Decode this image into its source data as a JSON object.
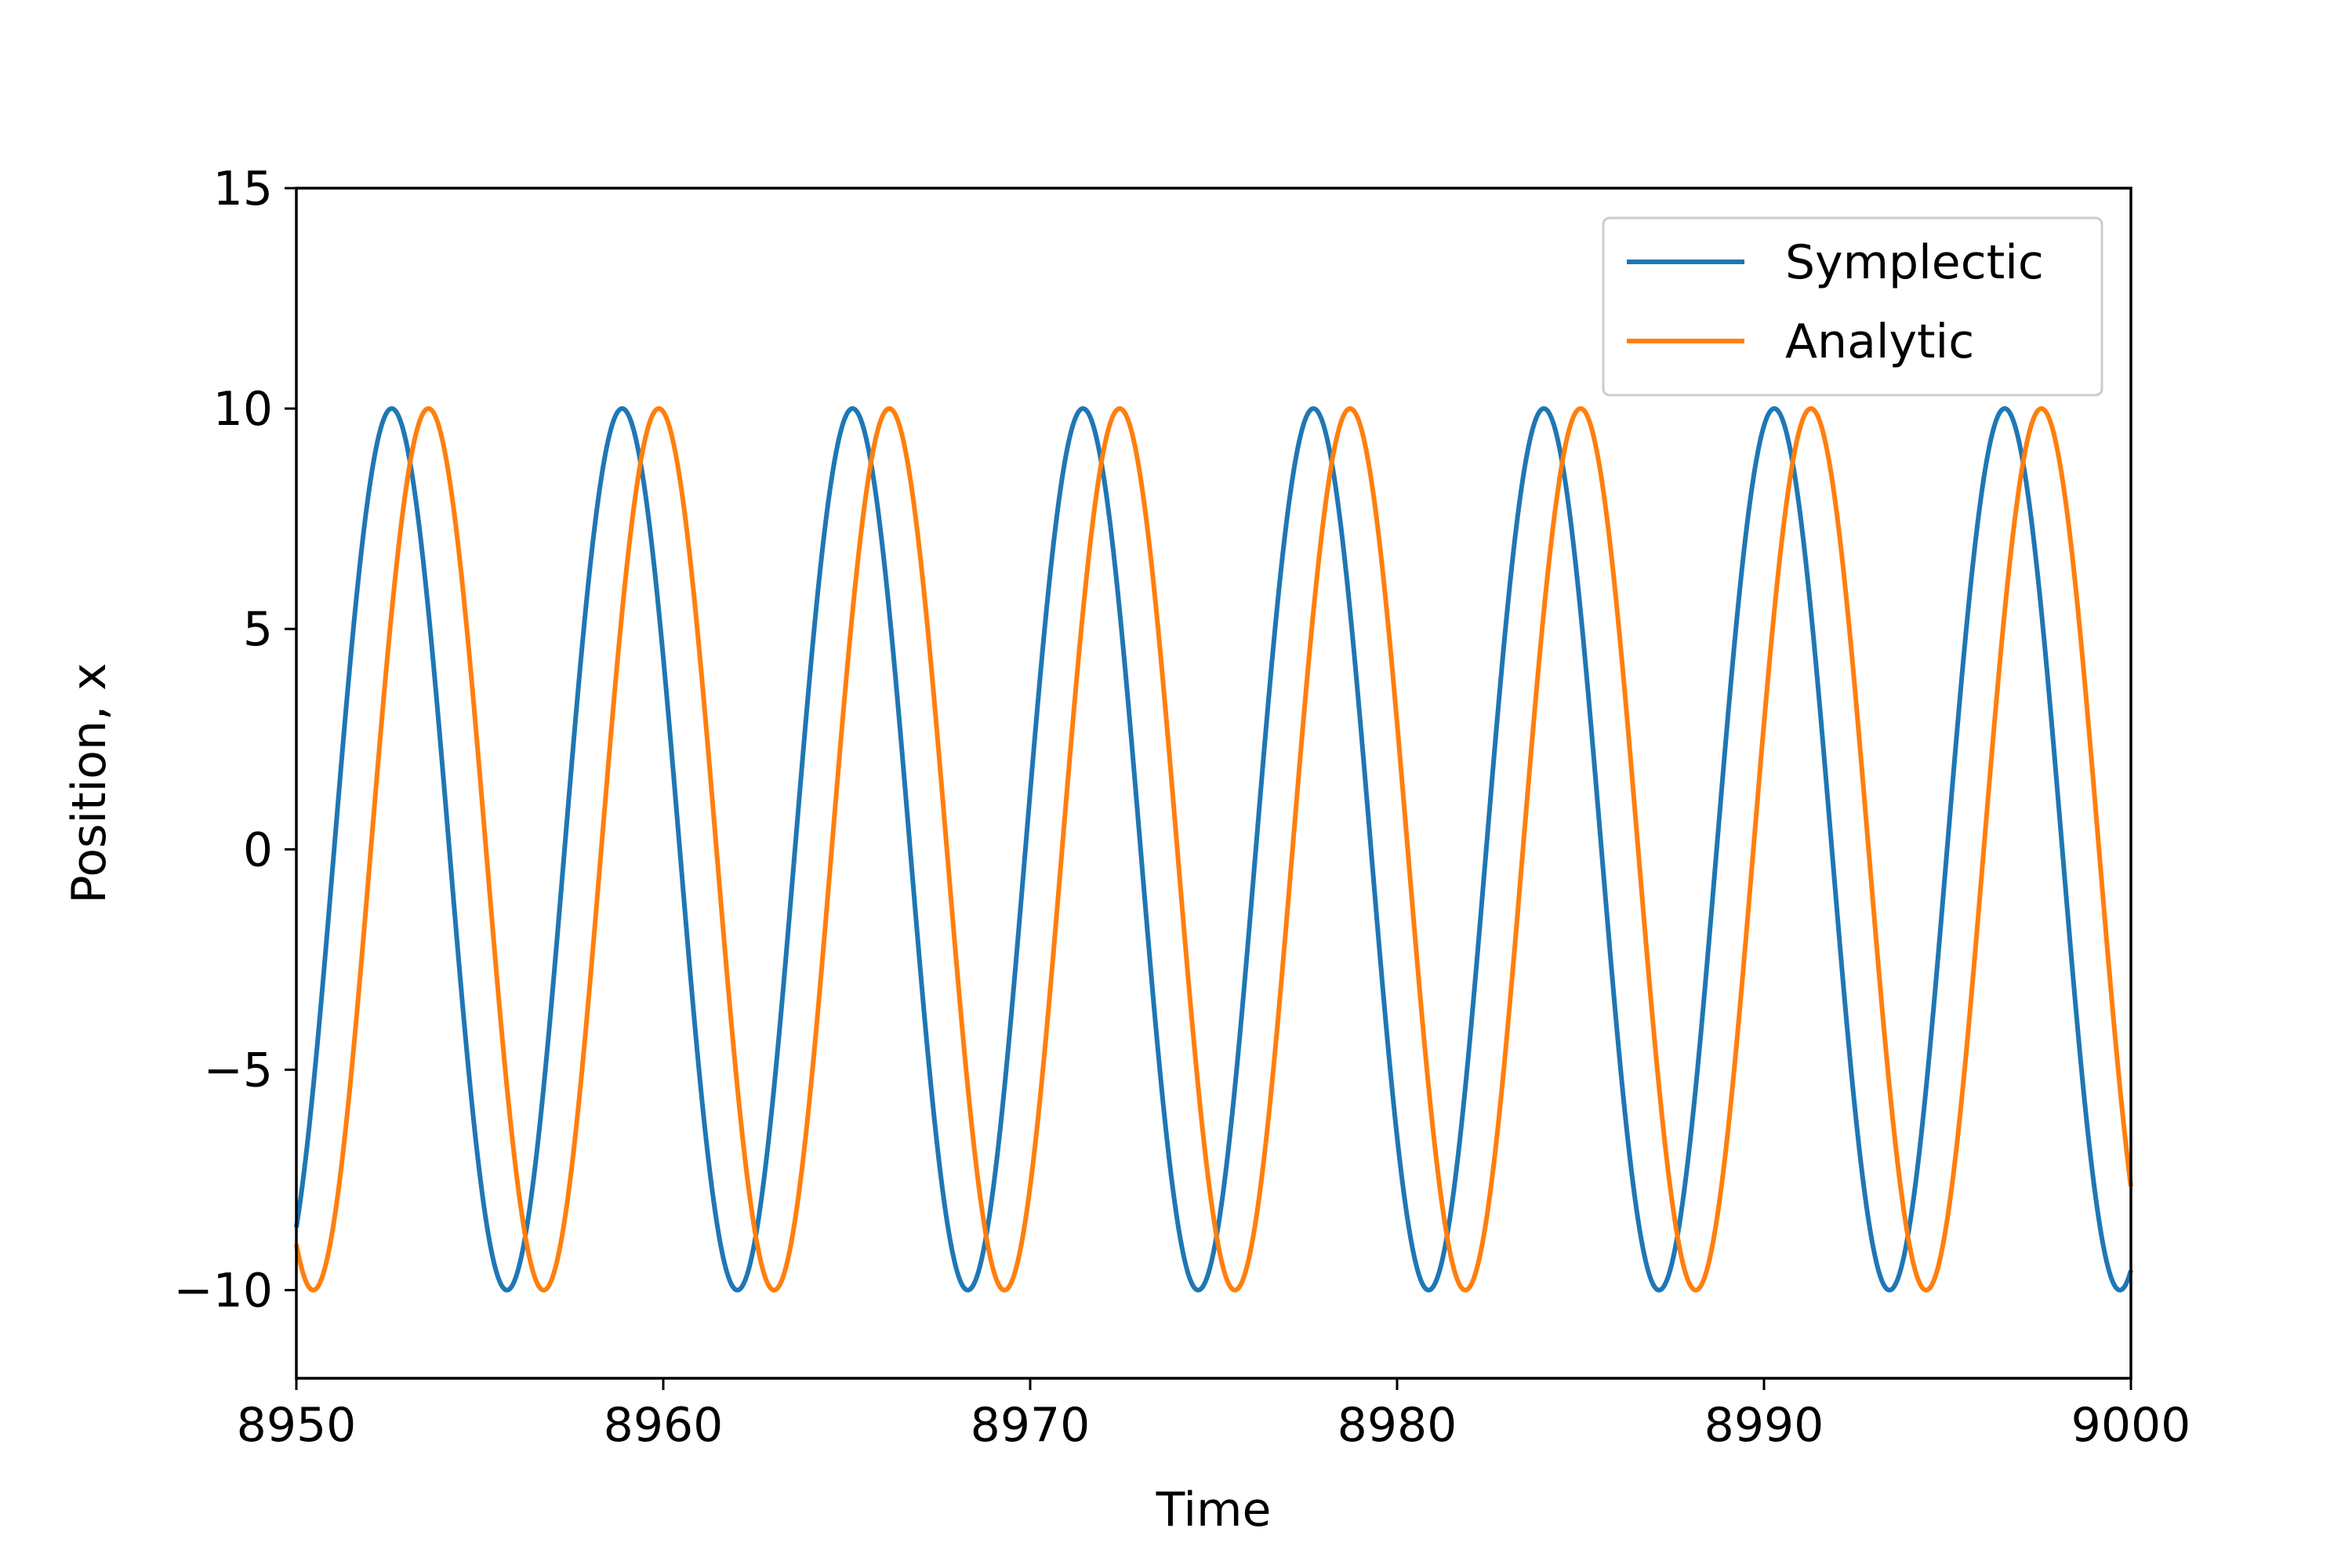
{
  "chart_data": {
    "type": "line",
    "xlabel": "Time",
    "ylabel": "Position, x",
    "xlim": [
      8950,
      9000
    ],
    "ylim": [
      -12,
      15
    ],
    "xticks": [
      8950,
      8960,
      8970,
      8980,
      8990,
      9000
    ],
    "xtick_labels": [
      "8950",
      "8960",
      "8970",
      "8980",
      "8990",
      "9000"
    ],
    "yticks": [
      -10,
      -5,
      0,
      5,
      10,
      15
    ],
    "ytick_labels": [
      "−10",
      "−5",
      "0",
      "5",
      "10",
      "15"
    ],
    "grid": false,
    "legend_position": "top-right",
    "series": [
      {
        "name": "Symplectic",
        "color": "#1f77b4",
        "function": "10*cos(omega*(t - 8952.6))",
        "amplitude": 10,
        "period": 6.28,
        "peak_times": [
          8952.6,
          8958.9,
          8965.2,
          8971.5,
          8977.7,
          8984.0,
          8990.3,
          8996.6
        ],
        "trough_times": [
          8955.8,
          8962.1,
          8968.4,
          8974.6,
          8980.9,
          8987.2,
          8993.5,
          8999.8
        ]
      },
      {
        "name": "Analytic",
        "color": "#ff7f0e",
        "function": "10*cos(omega*(t - 8953.6))",
        "amplitude": 10,
        "period": 6.28,
        "peak_times": [
          8953.6,
          8959.9,
          8966.1,
          8972.4,
          8978.7,
          8985.0,
          8991.3,
          8997.5
        ],
        "trough_times": [
          8950.4,
          8956.7,
          8963.0,
          8969.3,
          8975.6,
          8981.9,
          8988.2,
          8994.4
        ]
      }
    ]
  }
}
